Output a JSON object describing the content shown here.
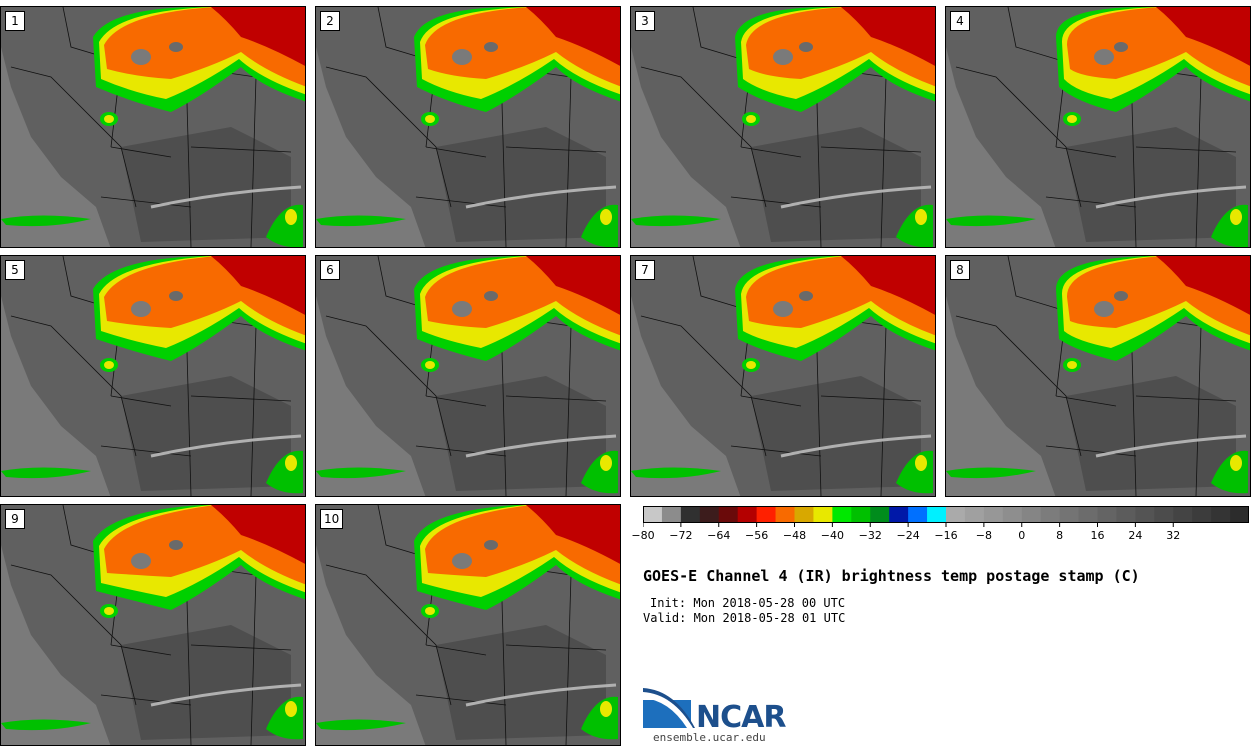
{
  "panels": [
    {
      "label": "1"
    },
    {
      "label": "2"
    },
    {
      "label": "3"
    },
    {
      "label": "4"
    },
    {
      "label": "5"
    },
    {
      "label": "6"
    },
    {
      "label": "7"
    },
    {
      "label": "8"
    },
    {
      "label": "9"
    },
    {
      "label": "10"
    }
  ],
  "colorbar": {
    "colors": [
      "#c8c8c8",
      "#8c8c8c",
      "#303030",
      "#3c1c1c",
      "#6a0a0a",
      "#b40000",
      "#ff2000",
      "#f86a00",
      "#d8a800",
      "#e8e800",
      "#00e800",
      "#00c000",
      "#008c1c",
      "#0018a8",
      "#0070ff",
      "#00f0ff",
      "#aaaaaa",
      "#a0a0a0",
      "#979797",
      "#8e8e8e",
      "#858585",
      "#7c7c7c",
      "#747474",
      "#6c6c6c",
      "#646464",
      "#5c5c5c",
      "#545454",
      "#4c4c4c",
      "#444444",
      "#3c3c3c",
      "#343434",
      "#2c2c2c"
    ],
    "ticks": [
      "−80",
      "−72",
      "−64",
      "−56",
      "−48",
      "−40",
      "−32",
      "−24",
      "−16",
      "−8",
      "0",
      "8",
      "16",
      "24",
      "32"
    ]
  },
  "title": "GOES-E Channel 4 (IR) brightness temp postage stamp (C)",
  "init": "Init: Mon 2018-05-28 00 UTC",
  "valid": "Valid: Mon 2018-05-28 01 UTC",
  "logo": {
    "text": "NCAR",
    "site": "ensemble.ucar.edu"
  }
}
